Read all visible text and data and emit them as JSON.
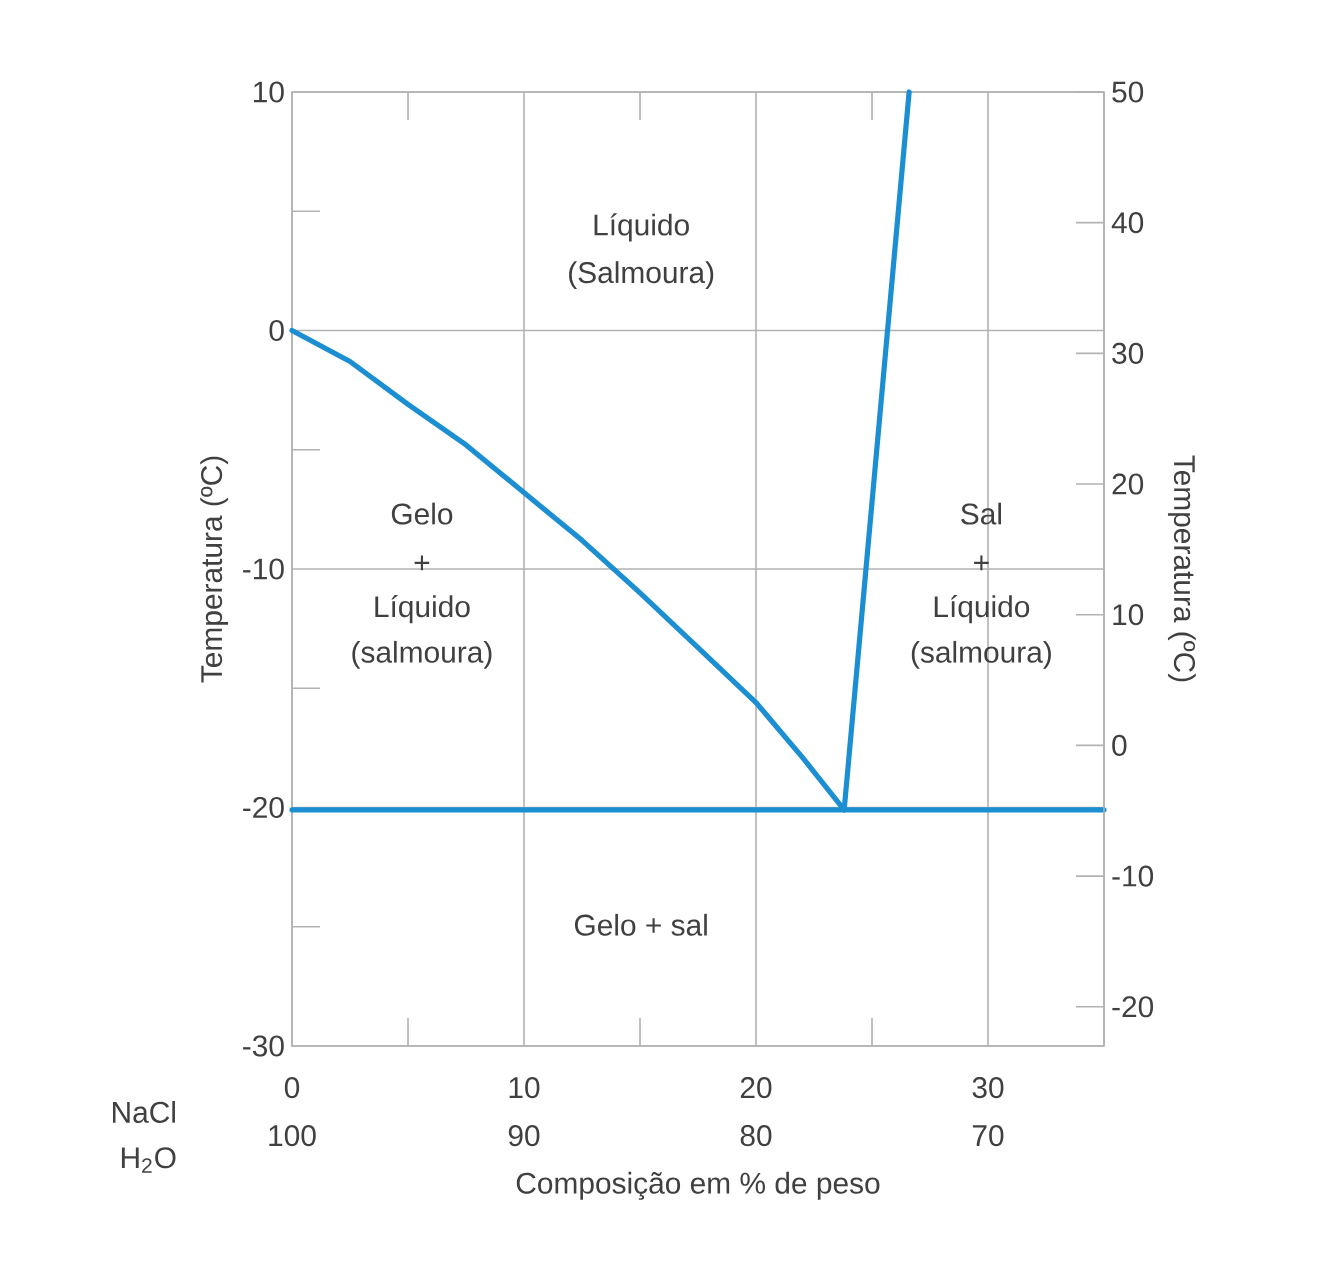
{
  "chart_data": {
    "type": "line",
    "xlabel": "Composição em % de peso",
    "ylabel": "Temperatura (ºC)",
    "y2label": "Temperatura (ºC)",
    "xlim": [
      0,
      35
    ],
    "xticks": [
      0,
      10,
      20,
      30,
      {
        "value": 5,
        "label": null
      },
      {
        "value": 15,
        "label": null
      },
      {
        "value": 25,
        "label": null
      }
    ],
    "x2lim": [
      100,
      65
    ],
    "x2ticks": [
      100,
      90,
      80,
      70
    ],
    "ylim": [
      -30,
      10
    ],
    "yticks": [
      -30,
      -20,
      -10,
      0,
      10,
      {
        "value": -25,
        "label": null
      },
      {
        "value": -15,
        "label": null
      },
      {
        "value": -5,
        "label": null
      },
      {
        "value": 5,
        "label": null
      }
    ],
    "y2lim": [
      -23,
      50
    ],
    "y2ticks": [
      -20,
      -10,
      0,
      10,
      20,
      30,
      40,
      50
    ],
    "grid": true,
    "marker": "none",
    "line_style": "solid",
    "series": [
      {
        "color": "#1b8fd2",
        "x": [
          0,
          2.5,
          5,
          7.5,
          10,
          12.5,
          15,
          17.5,
          20,
          22,
          23.8
        ],
        "values": [
          0,
          -1.3,
          -3.1,
          -4.8,
          -6.8,
          -8.8,
          -11.0,
          -13.3,
          -15.6,
          -17.9,
          -20.1
        ]
      },
      {
        "color": "#1b8fd2",
        "x": [
          0,
          23.8,
          35
        ],
        "values": [
          -20.1,
          -20.1,
          -20.1
        ]
      },
      {
        "color": "#1b8fd2",
        "x": [
          23.8,
          26.6
        ],
        "values": [
          -20.1,
          10
        ]
      }
    ],
    "annotations": [
      "Líquido",
      "(Salmoura)",
      "Gelo",
      "+",
      "Líquido",
      "(salmoura)",
      "Sal",
      "+",
      "Líquido",
      "(salmoura)",
      "Gelo + sal",
      "NaCl",
      "H$_{2}$O"
    ]
  }
}
